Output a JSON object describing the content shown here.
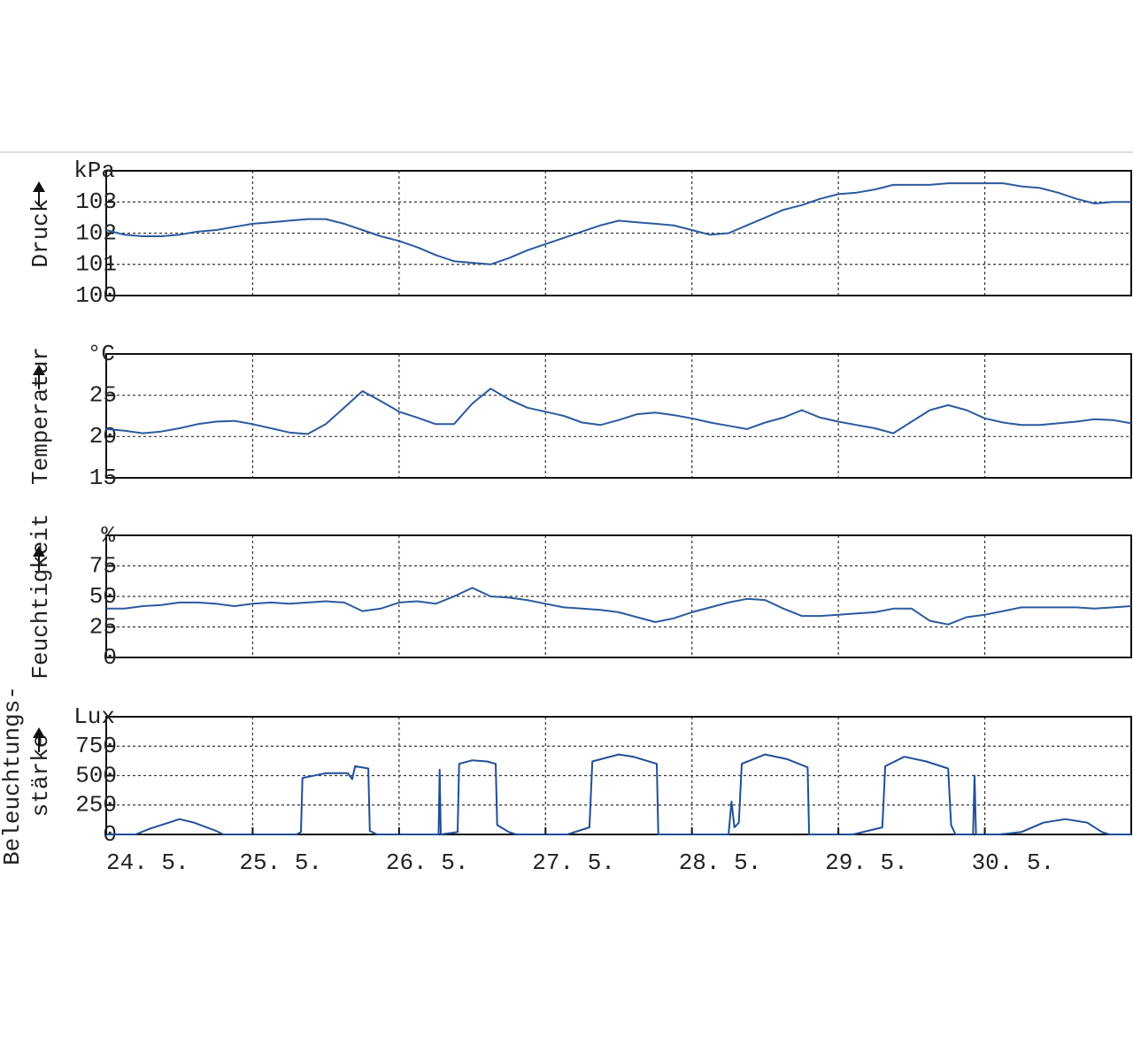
{
  "chart_data": [
    {
      "type": "line",
      "unit": "kPa",
      "ylabel": [
        "Druck"
      ],
      "color": "#2b5a9e",
      "grid": true,
      "xlim": [
        0,
        7
      ],
      "ylim": [
        100,
        104
      ],
      "yticks": [
        100,
        101,
        102,
        103
      ],
      "x": [
        0,
        0.125,
        0.25,
        0.375,
        0.5,
        0.625,
        0.75,
        0.875,
        1,
        1.125,
        1.25,
        1.375,
        1.5,
        1.625,
        1.75,
        1.875,
        2,
        2.125,
        2.25,
        2.375,
        2.5,
        2.625,
        2.75,
        2.875,
        3,
        3.125,
        3.25,
        3.375,
        3.5,
        3.625,
        3.75,
        3.875,
        4,
        4.125,
        4.25,
        4.375,
        4.5,
        4.625,
        4.75,
        4.875,
        5,
        5.125,
        5.25,
        5.375,
        5.5,
        5.625,
        5.75,
        5.875,
        6,
        6.125,
        6.25,
        6.375,
        6.5,
        6.625,
        6.75,
        6.875,
        7
      ],
      "values": [
        102.1,
        101.95,
        101.9,
        101.9,
        101.95,
        102.05,
        102.1,
        102.2,
        102.3,
        102.35,
        102.4,
        102.45,
        102.45,
        102.3,
        102.1,
        101.9,
        101.75,
        101.55,
        101.3,
        101.1,
        101.05,
        101.0,
        101.2,
        101.45,
        101.65,
        101.85,
        102.05,
        102.25,
        102.4,
        102.35,
        102.3,
        102.25,
        102.1,
        101.95,
        102.0,
        102.25,
        102.5,
        102.75,
        102.9,
        103.1,
        103.25,
        103.3,
        103.4,
        103.55,
        103.55,
        103.55,
        103.6,
        103.6,
        103.6,
        103.6,
        103.5,
        103.45,
        103.3,
        103.1,
        102.95,
        103.0,
        103.0
      ]
    },
    {
      "type": "line",
      "unit": "°C",
      "ylabel": [
        "Temperatur"
      ],
      "color": "#2b5a9e",
      "grid": true,
      "xlim": [
        0,
        7
      ],
      "ylim": [
        15,
        30
      ],
      "yticks": [
        15,
        20,
        25
      ],
      "x": [
        0,
        0.125,
        0.25,
        0.375,
        0.5,
        0.625,
        0.75,
        0.875,
        1,
        1.125,
        1.25,
        1.375,
        1.5,
        1.625,
        1.75,
        1.875,
        2,
        2.125,
        2.25,
        2.375,
        2.5,
        2.625,
        2.75,
        2.875,
        3,
        3.125,
        3.25,
        3.375,
        3.5,
        3.625,
        3.75,
        3.875,
        4,
        4.125,
        4.25,
        4.375,
        4.5,
        4.625,
        4.75,
        4.875,
        5,
        5.125,
        5.25,
        5.375,
        5.5,
        5.625,
        5.75,
        5.875,
        6,
        6.125,
        6.25,
        6.375,
        6.5,
        6.625,
        6.75,
        6.875,
        7
      ],
      "values": [
        20.9,
        20.7,
        20.4,
        20.6,
        21,
        21.5,
        21.8,
        21.9,
        21.5,
        21.0,
        20.5,
        20.3,
        21.5,
        23.5,
        25.5,
        24.3,
        23,
        22.3,
        21.5,
        21.5,
        24,
        25.8,
        24.5,
        23.5,
        23,
        22.5,
        21.7,
        21.4,
        22,
        22.7,
        22.9,
        22.6,
        22.2,
        21.7,
        21.3,
        20.9,
        21.7,
        22.3,
        23.2,
        22.3,
        21.8,
        21.4,
        21.0,
        20.4,
        21.8,
        23.2,
        23.8,
        23.2,
        22.2,
        21.7,
        21.4,
        21.4,
        21.6,
        21.8,
        22.1,
        22.0,
        21.6
      ]
    },
    {
      "type": "line",
      "unit": "%",
      "ylabel": [
        "Feuchtigkeit"
      ],
      "color": "#2b5a9e",
      "grid": true,
      "xlim": [
        0,
        7
      ],
      "ylim": [
        0,
        100
      ],
      "yticks": [
        0,
        25,
        50,
        75
      ],
      "x": [
        0,
        0.125,
        0.25,
        0.375,
        0.5,
        0.625,
        0.75,
        0.875,
        1,
        1.125,
        1.25,
        1.375,
        1.5,
        1.625,
        1.75,
        1.875,
        2,
        2.125,
        2.25,
        2.375,
        2.5,
        2.625,
        2.75,
        2.875,
        3,
        3.125,
        3.25,
        3.375,
        3.5,
        3.625,
        3.75,
        3.875,
        4,
        4.125,
        4.25,
        4.375,
        4.5,
        4.625,
        4.75,
        4.875,
        5,
        5.125,
        5.25,
        5.375,
        5.5,
        5.625,
        5.75,
        5.875,
        6,
        6.125,
        6.25,
        6.375,
        6.5,
        6.625,
        6.75,
        6.875,
        7
      ],
      "values": [
        40,
        40,
        42,
        43,
        45,
        45,
        44,
        42,
        44,
        45,
        44,
        45,
        46,
        45,
        38,
        40,
        45,
        46,
        44,
        50,
        57,
        50,
        49,
        47,
        44,
        41,
        40,
        39,
        37,
        33,
        29,
        32,
        37,
        41,
        45,
        48,
        47,
        40,
        34,
        34,
        35,
        36,
        37,
        40,
        40,
        30,
        27,
        33,
        35,
        38,
        41,
        41,
        41,
        41,
        40,
        41,
        42
      ]
    },
    {
      "type": "line",
      "unit": "Lux",
      "ylabel": [
        "Beleuchtungs-",
        "stärke"
      ],
      "color": "#1f4f96",
      "grid": true,
      "xlim": [
        0,
        7
      ],
      "ylim": [
        0,
        1000
      ],
      "yticks": [
        0,
        250,
        500,
        750
      ],
      "xticks": [
        {
          "value": 0,
          "label": "24. 5."
        },
        {
          "value": 1,
          "label": "25. 5."
        },
        {
          "value": 2,
          "label": "26. 5."
        },
        {
          "value": 3,
          "label": "27. 5."
        },
        {
          "value": 4,
          "label": "28. 5."
        },
        {
          "value": 5,
          "label": "29. 5."
        },
        {
          "value": 6,
          "label": "30. 5."
        }
      ],
      "x": [
        0,
        0.2,
        0.3,
        0.45,
        0.5,
        0.6,
        0.75,
        0.8,
        1.3,
        1.33,
        1.34,
        1.5,
        1.65,
        1.68,
        1.7,
        1.79,
        1.8,
        1.85,
        2.27,
        2.277,
        2.285,
        2.4,
        2.41,
        2.5,
        2.6,
        2.66,
        2.67,
        2.75,
        2.8,
        3.15,
        3.3,
        3.32,
        3.5,
        3.6,
        3.76,
        3.77,
        4.25,
        4.27,
        4.29,
        4.32,
        4.34,
        4.5,
        4.65,
        4.79,
        4.8,
        5.1,
        5.3,
        5.32,
        5.45,
        5.6,
        5.75,
        5.77,
        5.8,
        5.92,
        5.93,
        5.94,
        6.1,
        6.25,
        6.4,
        6.55,
        6.7,
        6.8,
        6.85,
        7
      ],
      "values": [
        0,
        0,
        50,
        110,
        130,
        100,
        30,
        0,
        0,
        20,
        480,
        520,
        520,
        470,
        580,
        560,
        30,
        0,
        0,
        550,
        0,
        20,
        600,
        630,
        620,
        600,
        80,
        20,
        0,
        0,
        60,
        620,
        680,
        660,
        600,
        0,
        0,
        280,
        60,
        100,
        600,
        680,
        640,
        570,
        0,
        0,
        60,
        580,
        660,
        620,
        560,
        80,
        0,
        0,
        500,
        0,
        0,
        20,
        100,
        130,
        100,
        20,
        0,
        0
      ]
    }
  ]
}
